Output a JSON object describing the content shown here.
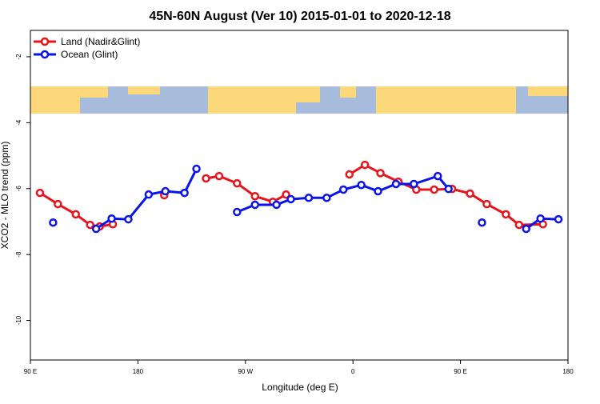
{
  "chart_data": {
    "type": "line",
    "title": "45N-60N August (Ver 10)   2015-01-01 to 2020-12-18",
    "x_label": "Longitude (deg E)",
    "y_label": "XCO2 - MLO trend (ppm)",
    "xlim": [
      90,
      540
    ],
    "ylim": [
      -11.2,
      -1.2
    ],
    "xticks": [
      {
        "value": 90,
        "label": "90 E"
      },
      180,
      {
        "value": 270,
        "label": "90 W"
      },
      {
        "value": 360,
        "label": "0"
      },
      {
        "value": 450,
        "label": "90 E"
      },
      {
        "value": 540,
        "label": "180"
      }
    ],
    "yticks": [
      -10,
      -8,
      -6,
      -4,
      -2
    ],
    "legend": "top-left",
    "series": [
      {
        "name": "Land (Nadir&Glint)",
        "color": "#e8141c",
        "x": [
          98,
          113,
          128,
          140,
          148,
          159,
          180,
          202,
          216,
          237,
          248,
          263,
          278,
          293,
          304,
          330,
          357,
          370,
          383,
          398,
          413,
          428,
          443,
          458,
          472,
          488,
          499,
          519
        ],
        "values": [
          -6.13,
          -6.47,
          -6.78,
          -7.1,
          -7.15,
          -7.08,
          null,
          -6.2,
          null,
          -5.69,
          -5.62,
          -5.84,
          -6.23,
          -6.4,
          -6.18,
          null,
          -5.57,
          -5.28,
          -5.53,
          -5.79,
          -6.03,
          -6.03,
          -6.01,
          -6.15,
          -6.47,
          -6.78,
          -7.1,
          -7.08
        ]
      },
      {
        "name": "Ocean (Glint)",
        "color": "#0a14e8",
        "x": [
          109,
          127,
          145,
          158,
          172,
          189,
          203,
          219,
          229,
          246,
          263,
          278,
          296,
          308,
          323,
          338,
          352,
          367,
          381,
          396,
          411,
          431,
          440,
          454,
          468,
          486,
          505,
          517,
          532
        ],
        "values": [
          -7.03,
          null,
          -7.22,
          -6.91,
          -6.93,
          -6.18,
          -6.08,
          -6.13,
          -5.4,
          null,
          -6.71,
          -6.49,
          -6.49,
          -6.32,
          -6.28,
          -6.28,
          -6.03,
          -5.89,
          -6.08,
          -5.86,
          -5.86,
          -5.62,
          -6.01,
          null,
          -7.03,
          null,
          -7.22,
          -6.91,
          -6.93
        ]
      }
    ]
  }
}
